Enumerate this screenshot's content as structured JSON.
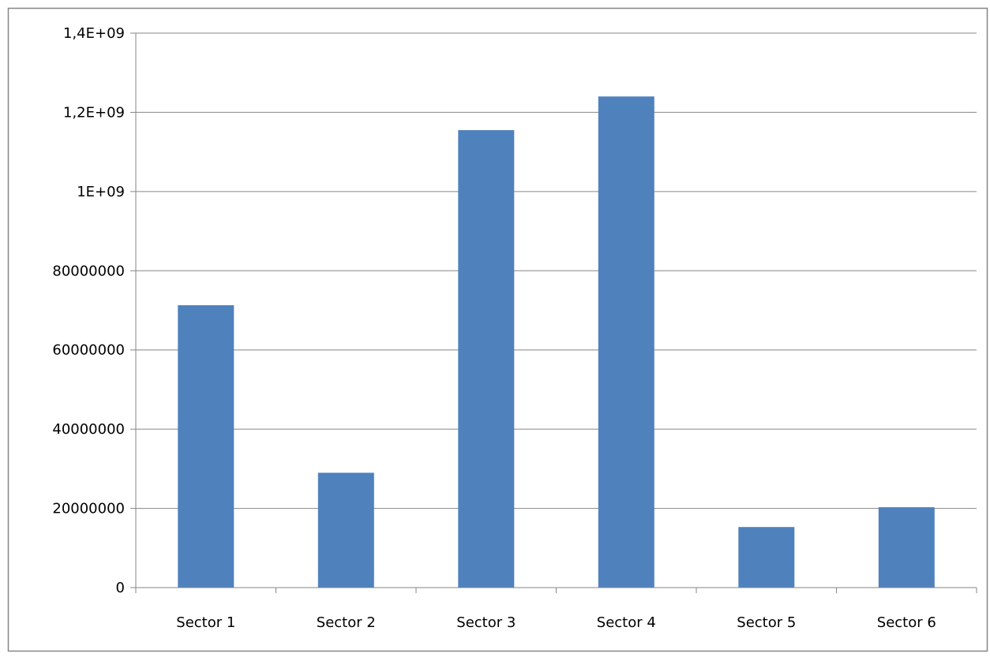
{
  "chart_data": {
    "type": "bar",
    "title": "",
    "xlabel": "",
    "ylabel": "",
    "categories": [
      "Sector 1",
      "Sector 2",
      "Sector 3",
      "Sector 4",
      "Sector 5",
      "Sector 6"
    ],
    "values": [
      71300000,
      29000000,
      1155000000,
      1240000000,
      15300000,
      20300000
    ],
    "y_tick_labels": [
      "0",
      "20000000",
      "40000000",
      "60000000",
      "80000000",
      "1E+09",
      "1,2E+09",
      "1,4E+09"
    ],
    "y_tick_values": [
      0,
      20000000,
      40000000,
      60000000,
      80000000,
      1000000000,
      1200000000,
      1400000000
    ],
    "y_axis_note": "tick labels printed as shown; axis spacing is uniform between ticks",
    "grid": true,
    "legend": "none",
    "colors": {
      "bar": "#4F81BD",
      "grid": "#868686",
      "axis": "#868686",
      "frame": "#868686"
    }
  }
}
